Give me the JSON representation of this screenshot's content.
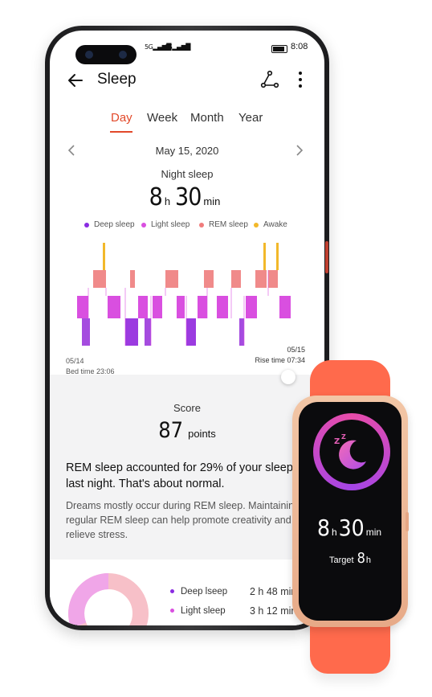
{
  "status_bar": {
    "signal_1": "5G",
    "signal_2": "4G",
    "time": "8:08"
  },
  "app_bar": {
    "title": "Sleep"
  },
  "tabs": [
    {
      "label": "Day",
      "active": true
    },
    {
      "label": "Week",
      "active": false
    },
    {
      "label": "Month",
      "active": false
    },
    {
      "label": "Year",
      "active": false
    }
  ],
  "date": "May 15, 2020",
  "night_sleep": {
    "label": "Night sleep",
    "hours": "8",
    "hours_unit": "h",
    "minutes": "30",
    "minutes_unit": "min"
  },
  "legend": [
    {
      "label": "Deep sleep",
      "color": "#8a2be2"
    },
    {
      "label": "Light sleep",
      "color": "#d94fe0"
    },
    {
      "label": "REM sleep",
      "color": "#f07c7c"
    },
    {
      "label": "Awake",
      "color": "#f2b82a"
    }
  ],
  "chart": {
    "start_date": "05/14",
    "bed_time": "Bed time 23:06",
    "end_date": "05/15",
    "rise_time": "Rise time 07:34"
  },
  "score": {
    "label": "Score",
    "value": "87",
    "unit": "points"
  },
  "rem_info": {
    "title": "REM sleep accounted for 29% of your sleep last night. That's about normal.",
    "body": "Dreams mostly occur during REM sleep. Maintaining regular REM sleep can help promote creativity and relieve stress."
  },
  "breakdown": [
    {
      "label": "Deep lseep",
      "value": "2 h 48 min",
      "color": "#8a2be2"
    },
    {
      "label": "Light sleep",
      "value": "3 h 12 min",
      "color": "#d94fe0"
    }
  ],
  "band": {
    "hours": "8",
    "hours_unit": "h",
    "minutes": "30",
    "minutes_unit": "min",
    "target_label": "Target",
    "target_value": "8",
    "target_unit": "h"
  }
}
